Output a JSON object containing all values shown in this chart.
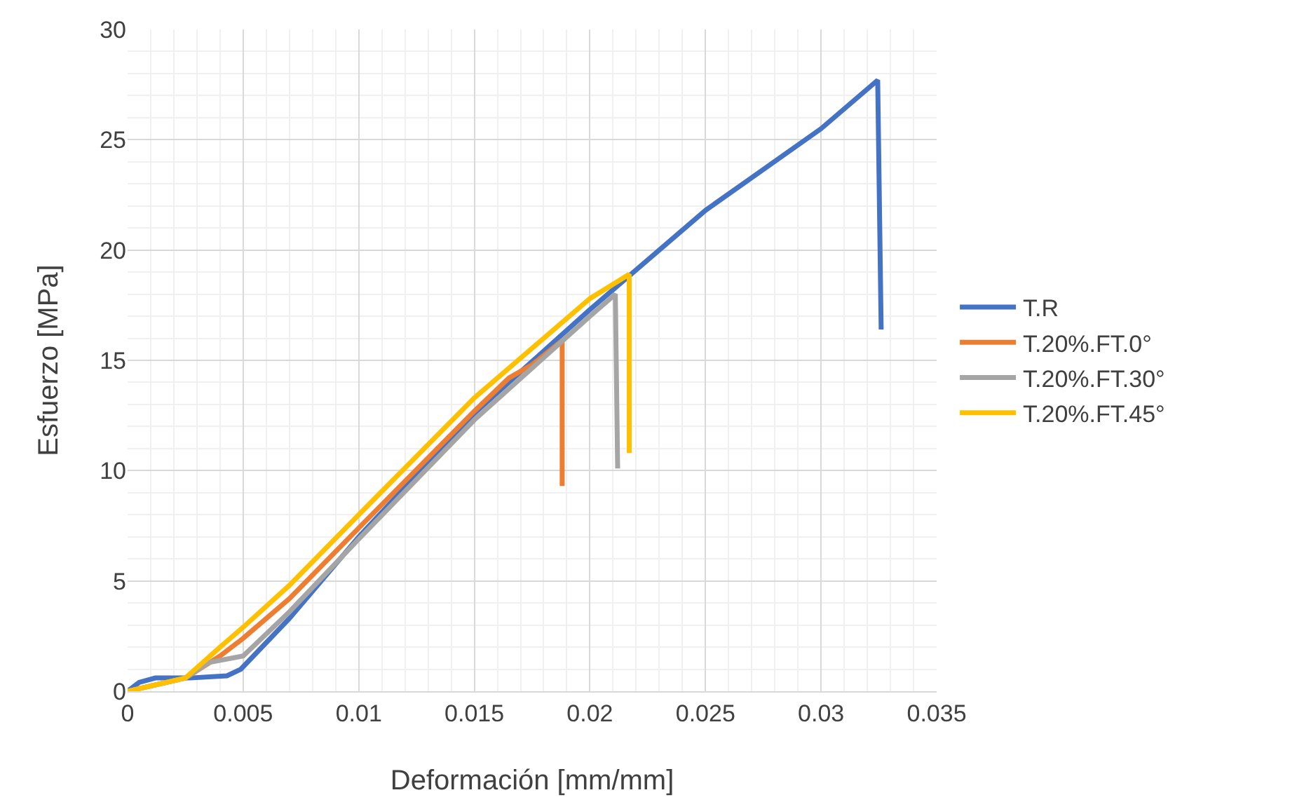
{
  "chart_data": {
    "type": "line",
    "xlabel": "Deformación [mm/mm]",
    "ylabel": "Esfuerzo [MPa]",
    "xlim": [
      0,
      0.035
    ],
    "xticks": [
      0,
      0.005,
      0.01,
      0.015,
      0.02,
      0.025,
      0.03,
      0.035
    ],
    "ylim": [
      0,
      30
    ],
    "yticks": [
      0,
      5,
      10,
      15,
      20,
      25,
      30
    ],
    "grid": true,
    "legend": "right",
    "marker": "none",
    "line_style": "solid",
    "series": [
      {
        "name": "T.R",
        "color": "#4472c4",
        "x": [
          0,
          0.0005,
          0.0012,
          0.0027,
          0.0043,
          0.0049,
          0.007,
          0.01,
          0.015,
          0.02,
          0.025,
          0.03,
          0.03245,
          0.0326
        ],
        "values": [
          0,
          0.4,
          0.6,
          0.6,
          0.7,
          1.0,
          3.3,
          7,
          12.6,
          17.3,
          21.8,
          25.5,
          27.7,
          16.4
        ]
      },
      {
        "name": "T.20%.FT.0°",
        "color": "#ed7d31",
        "x": [
          0,
          0.0025,
          0.004,
          0.005,
          0.007,
          0.01,
          0.015,
          0.0165,
          0.0175,
          0.0188,
          0.0188
        ],
        "values": [
          0,
          0.6,
          1.6,
          2.4,
          4.2,
          7.4,
          12.7,
          14.2,
          14.8,
          15.9,
          9.3
        ]
      },
      {
        "name": "T.20%.FT.30°",
        "color": "#a5a5a5",
        "x": [
          0,
          0.0025,
          0.0035,
          0.005,
          0.007,
          0.01,
          0.015,
          0.02,
          0.0211,
          0.0212
        ],
        "values": [
          0,
          0.6,
          1.3,
          1.6,
          3.6,
          6.9,
          12.3,
          17,
          18,
          10.1
        ]
      },
      {
        "name": "T.20%.FT.45°",
        "color": "#ffc000",
        "x": [
          0,
          0.0025,
          0.004,
          0.005,
          0.007,
          0.01,
          0.015,
          0.018,
          0.02,
          0.0217,
          0.0217
        ],
        "values": [
          0,
          0.6,
          2,
          2.9,
          4.8,
          8,
          13.3,
          16,
          17.8,
          18.9,
          10.8
        ]
      }
    ]
  }
}
